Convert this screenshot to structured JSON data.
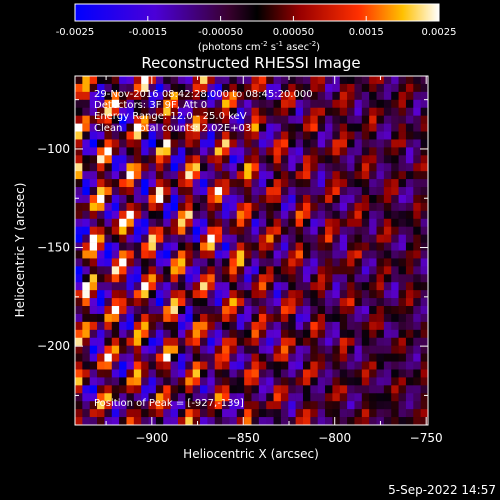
{
  "colorbar": {
    "tick_labels": [
      "-0.0025",
      "-0.0015",
      "-0.00050",
      "0.00050",
      "0.0015",
      "0.0025"
    ],
    "unit_prefix": "(photons cm",
    "unit_exp1": "-2",
    "unit_mid": " s",
    "unit_exp2": "-1",
    "unit_suffix": " asec",
    "unit_exp3": "-2",
    "unit_close": ")",
    "range": [
      -0.0025,
      0.0025
    ]
  },
  "title": "Reconstructed RHESSI Image",
  "info_lines": [
    "29-Nov-2016 08:42:28.000 to 08:45:20.000",
    "Detectors: 3F 9F, Att 0",
    "Energy Range: 12.0 - 25.0 keV",
    "Clean    Total counts: 2.02E+03"
  ],
  "peak_label": "Position of Peak = [-927,-139]",
  "timestamp": "5-Sep-2022 14:57",
  "chart_data": {
    "type": "heatmap",
    "title": "Reconstructed RHESSI Image",
    "xlabel": "Heliocentric X (arcsec)",
    "ylabel": "Heliocentric Y (arcsec)",
    "x_ticks": [
      -900,
      -850,
      -800,
      -750
    ],
    "y_ticks": [
      -100,
      -150,
      -200
    ],
    "xlim": [
      -942,
      -749
    ],
    "ylim": [
      -240,
      -63
    ],
    "grid_cols": 48,
    "grid_rows": 44,
    "colormap": "hot-cold",
    "peak": [
      -927,
      -139
    ]
  }
}
